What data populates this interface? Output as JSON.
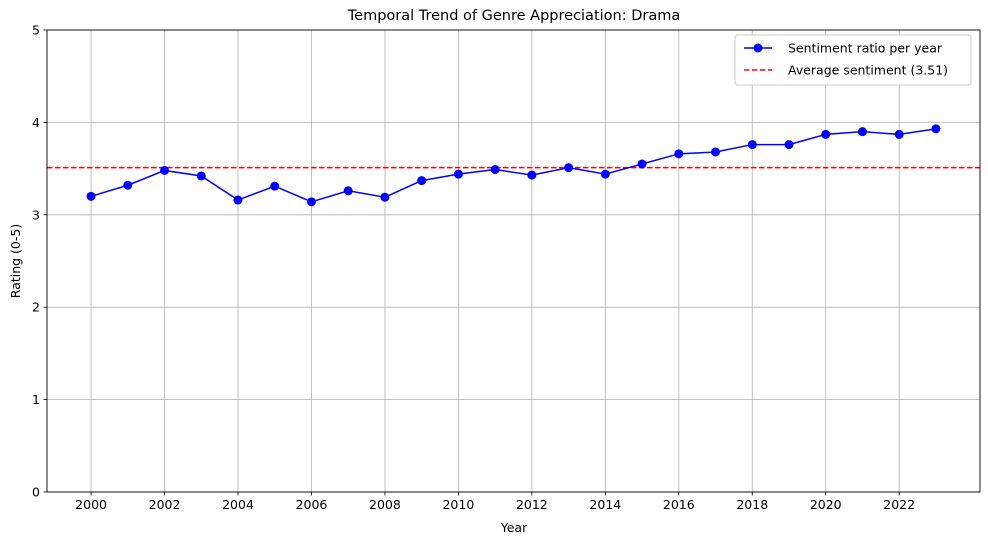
{
  "chart_data": {
    "type": "line",
    "title": "Temporal Trend of Genre Appreciation: Drama",
    "xlabel": "Year",
    "ylabel": "Rating (0-5)",
    "xlim": [
      1998.8,
      2024.2
    ],
    "ylim": [
      0,
      5
    ],
    "xticks": [
      2000,
      2002,
      2004,
      2006,
      2008,
      2010,
      2012,
      2014,
      2016,
      2018,
      2020,
      2022
    ],
    "yticks": [
      0,
      1,
      2,
      3,
      4,
      5
    ],
    "grid": true,
    "legend_position": "top-right",
    "series": [
      {
        "name": "Sentiment ratio per year",
        "color": "#0000ff",
        "marker": "circle",
        "x": [
          2000,
          2001,
          2002,
          2003,
          2004,
          2005,
          2006,
          2007,
          2008,
          2009,
          2010,
          2011,
          2012,
          2013,
          2014,
          2015,
          2016,
          2017,
          2018,
          2019,
          2020,
          2021,
          2022,
          2023
        ],
        "y": [
          3.2,
          3.32,
          3.48,
          3.42,
          3.16,
          3.31,
          3.14,
          3.26,
          3.19,
          3.37,
          3.44,
          3.49,
          3.43,
          3.51,
          3.44,
          3.55,
          3.66,
          3.68,
          3.76,
          3.76,
          3.87,
          3.9,
          3.87,
          3.93
        ]
      }
    ],
    "reference_lines": [
      {
        "name": "Average sentiment (3.51)",
        "color": "#ff0000",
        "style": "dashed",
        "y": 3.51
      }
    ]
  }
}
